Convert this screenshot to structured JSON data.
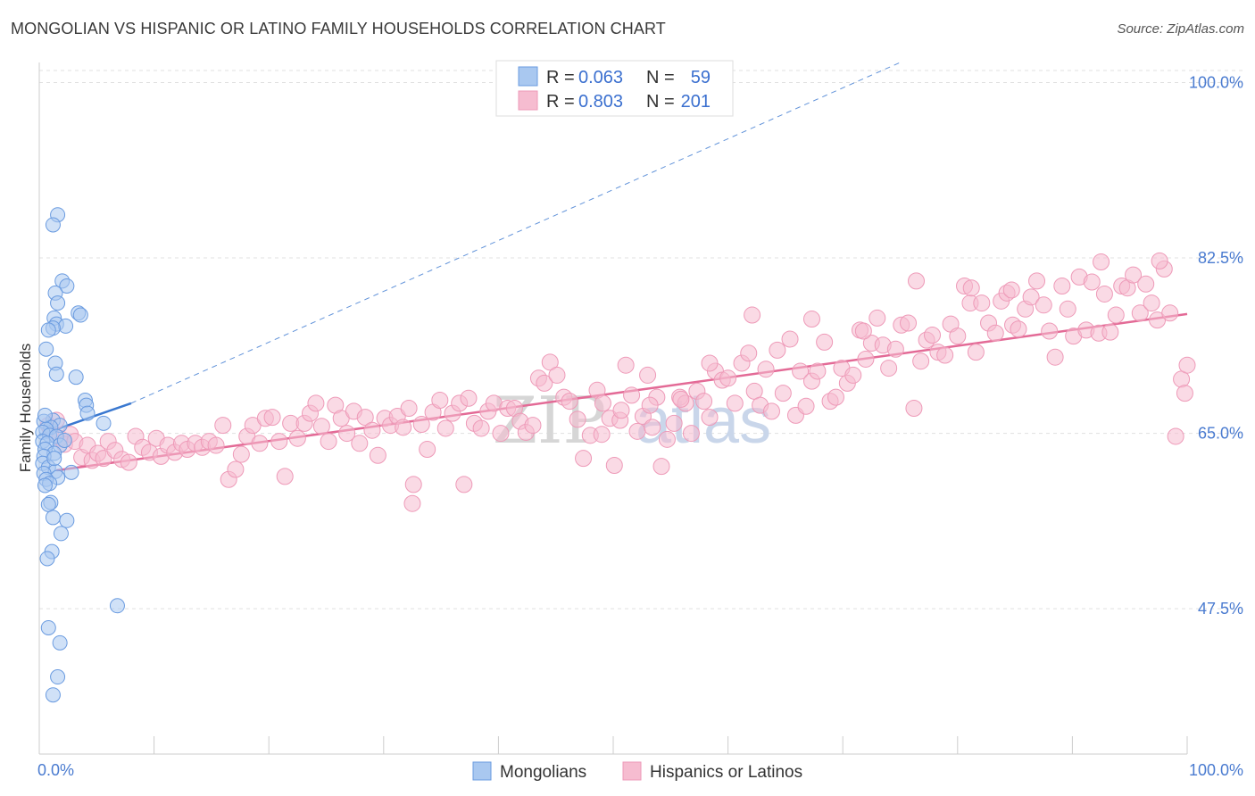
{
  "title": "MONGOLIAN VS HISPANIC OR LATINO FAMILY HOUSEHOLDS CORRELATION CHART",
  "source": "Source: ZipAtlas.com",
  "watermark": {
    "part1": "ZIP",
    "part2": "atlas"
  },
  "legend_box": {
    "rows": [
      {
        "r_label": "R = ",
        "r_value": "0.063",
        "n_label": "N = ",
        "n_value": "59"
      },
      {
        "r_label": "R = ",
        "r_value": "0.803",
        "n_label": "N = ",
        "n_value": "201"
      }
    ]
  },
  "colors": {
    "blue_fill": "#a9c8f0",
    "blue_stroke": "#6a9be0",
    "blue_line": "#3a78d0",
    "pink_fill": "#f6bcd0",
    "pink_stroke": "#ee9ab8",
    "pink_line": "#e36a96",
    "axis_label": "#4a7bd0",
    "grid": "#e0e0e0"
  },
  "chart_data": {
    "type": "scatter",
    "title": "MONGOLIAN VS HISPANIC OR LATINO FAMILY HOUSEHOLDS CORRELATION CHART",
    "xlabel": "",
    "ylabel": "Family Households",
    "xlim": [
      0,
      100
    ],
    "ylim": [
      33,
      102
    ],
    "x_tick_labels": [
      "0.0%",
      "100.0%"
    ],
    "y_ticks": [
      47.5,
      65.0,
      82.5,
      100.0
    ],
    "y_tick_labels": [
      "47.5%",
      "65.0%",
      "82.5%",
      "100.0%"
    ],
    "legend": [
      "Mongolians",
      "Hispanics or Latinos"
    ],
    "series": [
      {
        "name": "Mongolians",
        "R": 0.063,
        "N": 59,
        "trend": {
          "x1": 0.0,
          "y1": 64.8,
          "x2": 8.0,
          "y2": 68.0,
          "extended_to_x": 75.0,
          "extended_to_y": 102.0
        },
        "points": [
          [
            1.6,
            86.8
          ],
          [
            1.2,
            85.8
          ],
          [
            2.0,
            80.2
          ],
          [
            2.4,
            79.7
          ],
          [
            1.4,
            79.0
          ],
          [
            1.6,
            78.0
          ],
          [
            3.4,
            77.0
          ],
          [
            3.6,
            76.8
          ],
          [
            1.3,
            76.5
          ],
          [
            1.5,
            75.9
          ],
          [
            2.3,
            75.7
          ],
          [
            1.2,
            75.5
          ],
          [
            0.8,
            75.3
          ],
          [
            0.6,
            73.4
          ],
          [
            1.4,
            72.0
          ],
          [
            1.5,
            70.9
          ],
          [
            3.2,
            70.6
          ],
          [
            4.0,
            68.3
          ],
          [
            4.1,
            67.8
          ],
          [
            4.2,
            67.0
          ],
          [
            1.2,
            66.3
          ],
          [
            0.4,
            66.2
          ],
          [
            1.8,
            65.8
          ],
          [
            1.0,
            65.6
          ],
          [
            0.6,
            65.4
          ],
          [
            5.6,
            66.0
          ],
          [
            0.3,
            65.1
          ],
          [
            0.9,
            64.8
          ],
          [
            1.5,
            64.7
          ],
          [
            0.3,
            64.2
          ],
          [
            0.7,
            64.0
          ],
          [
            1.8,
            63.8
          ],
          [
            0.5,
            63.4
          ],
          [
            1.3,
            63.0
          ],
          [
            0.4,
            62.7
          ],
          [
            0.3,
            62.0
          ],
          [
            0.8,
            61.6
          ],
          [
            1.4,
            61.2
          ],
          [
            2.8,
            61.1
          ],
          [
            0.4,
            61.0
          ],
          [
            1.6,
            60.6
          ],
          [
            0.6,
            60.4
          ],
          [
            0.9,
            60.0
          ],
          [
            0.5,
            59.8
          ],
          [
            1.0,
            58.1
          ],
          [
            0.8,
            57.9
          ],
          [
            1.2,
            56.6
          ],
          [
            2.4,
            56.3
          ],
          [
            1.9,
            55.0
          ],
          [
            1.1,
            53.2
          ],
          [
            0.7,
            52.5
          ],
          [
            6.8,
            47.8
          ],
          [
            0.8,
            45.6
          ],
          [
            1.8,
            44.1
          ],
          [
            1.6,
            40.7
          ],
          [
            1.2,
            38.9
          ],
          [
            0.5,
            66.8
          ],
          [
            2.2,
            64.3
          ],
          [
            1.3,
            62.5
          ]
        ]
      },
      {
        "name": "Hispanics or Latinos",
        "R": 0.803,
        "N": 201,
        "trend": {
          "x1": 1.5,
          "y1": 61.3,
          "x2": 100.0,
          "y2": 76.9
        },
        "points": [
          [
            0.8,
            65.8
          ],
          [
            1.0,
            65.2
          ],
          [
            1.5,
            66.3
          ],
          [
            1.8,
            64.5
          ],
          [
            2.2,
            63.9
          ],
          [
            2.7,
            64.9
          ],
          [
            3.1,
            64.2
          ],
          [
            3.7,
            62.6
          ],
          [
            4.2,
            63.8
          ],
          [
            4.6,
            62.3
          ],
          [
            5.1,
            63.0
          ],
          [
            5.6,
            62.5
          ],
          [
            6.0,
            64.2
          ],
          [
            6.6,
            63.3
          ],
          [
            7.2,
            62.4
          ],
          [
            7.8,
            62.1
          ],
          [
            8.4,
            64.7
          ],
          [
            9.0,
            63.6
          ],
          [
            9.6,
            63.1
          ],
          [
            10.2,
            64.5
          ],
          [
            10.6,
            62.7
          ],
          [
            11.2,
            63.8
          ],
          [
            11.8,
            63.1
          ],
          [
            12.4,
            64.0
          ],
          [
            12.9,
            63.4
          ],
          [
            13.6,
            64.0
          ],
          [
            14.2,
            63.6
          ],
          [
            14.8,
            64.2
          ],
          [
            15.4,
            63.8
          ],
          [
            16.0,
            65.8
          ],
          [
            16.5,
            60.4
          ],
          [
            17.1,
            61.4
          ],
          [
            17.6,
            62.9
          ],
          [
            18.1,
            64.7
          ],
          [
            18.6,
            65.8
          ],
          [
            19.2,
            64.0
          ],
          [
            19.7,
            66.5
          ],
          [
            20.3,
            66.6
          ],
          [
            20.9,
            64.2
          ],
          [
            21.4,
            60.7
          ],
          [
            21.9,
            66.0
          ],
          [
            22.5,
            64.5
          ],
          [
            23.1,
            66.0
          ],
          [
            23.6,
            67.0
          ],
          [
            24.1,
            68.0
          ],
          [
            24.6,
            65.7
          ],
          [
            25.2,
            64.2
          ],
          [
            25.8,
            67.8
          ],
          [
            26.3,
            66.5
          ],
          [
            26.8,
            65.0
          ],
          [
            27.4,
            67.2
          ],
          [
            27.9,
            64.0
          ],
          [
            28.4,
            66.6
          ],
          [
            29.0,
            65.3
          ],
          [
            29.5,
            62.8
          ],
          [
            30.1,
            66.5
          ],
          [
            30.6,
            65.8
          ],
          [
            31.2,
            66.7
          ],
          [
            31.7,
            65.6
          ],
          [
            32.2,
            67.5
          ],
          [
            32.6,
            59.9
          ],
          [
            32.5,
            58.0
          ],
          [
            33.3,
            65.9
          ],
          [
            33.8,
            63.4
          ],
          [
            34.3,
            67.1
          ],
          [
            34.9,
            68.3
          ],
          [
            35.4,
            65.5
          ],
          [
            36.0,
            67.0
          ],
          [
            36.6,
            68.0
          ],
          [
            37.0,
            59.9
          ],
          [
            37.4,
            68.5
          ],
          [
            37.9,
            66.0
          ],
          [
            38.5,
            65.5
          ],
          [
            39.1,
            67.2
          ],
          [
            39.6,
            68.0
          ],
          [
            40.2,
            65.0
          ],
          [
            40.8,
            67.5
          ],
          [
            41.4,
            67.5
          ],
          [
            41.9,
            66.2
          ],
          [
            42.4,
            65.1
          ],
          [
            43.0,
            65.8
          ],
          [
            43.5,
            70.5
          ],
          [
            44.0,
            70.0
          ],
          [
            44.5,
            72.1
          ],
          [
            45.1,
            70.8
          ],
          [
            45.7,
            68.6
          ],
          [
            46.2,
            68.2
          ],
          [
            46.9,
            66.4
          ],
          [
            47.4,
            62.5
          ],
          [
            48.0,
            64.8
          ],
          [
            48.6,
            69.3
          ],
          [
            49.1,
            68.0
          ],
          [
            49.7,
            66.5
          ],
          [
            50.1,
            61.8
          ],
          [
            50.6,
            66.3
          ],
          [
            51.1,
            71.8
          ],
          [
            51.6,
            68.8
          ],
          [
            52.1,
            65.2
          ],
          [
            52.6,
            66.7
          ],
          [
            53.0,
            70.8
          ],
          [
            53.4,
            65.6
          ],
          [
            53.8,
            68.6
          ],
          [
            54.2,
            61.7
          ],
          [
            54.7,
            64.4
          ],
          [
            55.3,
            66.0
          ],
          [
            55.8,
            68.6
          ],
          [
            56.3,
            68.0
          ],
          [
            56.8,
            65.0
          ],
          [
            57.3,
            69.2
          ],
          [
            57.9,
            68.2
          ],
          [
            58.4,
            66.6
          ],
          [
            58.9,
            71.2
          ],
          [
            59.5,
            70.3
          ],
          [
            60.0,
            70.5
          ],
          [
            60.6,
            68.0
          ],
          [
            61.2,
            72.0
          ],
          [
            61.8,
            73.0
          ],
          [
            62.3,
            69.2
          ],
          [
            62.8,
            67.8
          ],
          [
            63.3,
            71.4
          ],
          [
            63.8,
            67.2
          ],
          [
            64.3,
            73.3
          ],
          [
            64.8,
            69.0
          ],
          [
            65.4,
            74.4
          ],
          [
            65.9,
            66.8
          ],
          [
            66.3,
            71.2
          ],
          [
            66.8,
            67.7
          ],
          [
            67.3,
            70.2
          ],
          [
            67.8,
            71.2
          ],
          [
            68.4,
            74.1
          ],
          [
            68.9,
            68.2
          ],
          [
            69.4,
            68.6
          ],
          [
            69.9,
            71.5
          ],
          [
            70.4,
            70.0
          ],
          [
            70.9,
            70.8
          ],
          [
            71.5,
            75.3
          ],
          [
            72.0,
            72.4
          ],
          [
            72.5,
            74.0
          ],
          [
            73.0,
            76.5
          ],
          [
            73.5,
            73.8
          ],
          [
            74.0,
            71.5
          ],
          [
            74.6,
            73.4
          ],
          [
            75.1,
            75.8
          ],
          [
            75.7,
            76.0
          ],
          [
            76.2,
            67.5
          ],
          [
            76.8,
            72.2
          ],
          [
            77.3,
            74.3
          ],
          [
            77.8,
            74.8
          ],
          [
            78.3,
            73.1
          ],
          [
            78.9,
            72.8
          ],
          [
            79.4,
            75.9
          ],
          [
            80.0,
            74.7
          ],
          [
            80.6,
            79.7
          ],
          [
            81.1,
            78.0
          ],
          [
            81.6,
            73.1
          ],
          [
            82.1,
            78.0
          ],
          [
            82.7,
            76.0
          ],
          [
            83.3,
            75.0
          ],
          [
            83.8,
            78.2
          ],
          [
            84.3,
            79.0
          ],
          [
            84.8,
            75.8
          ],
          [
            85.3,
            75.4
          ],
          [
            85.9,
            77.4
          ],
          [
            86.4,
            78.6
          ],
          [
            86.9,
            80.2
          ],
          [
            87.5,
            77.8
          ],
          [
            88.0,
            75.2
          ],
          [
            88.5,
            72.6
          ],
          [
            89.1,
            79.7
          ],
          [
            89.6,
            77.4
          ],
          [
            90.1,
            74.7
          ],
          [
            90.6,
            80.6
          ],
          [
            91.2,
            75.3
          ],
          [
            91.7,
            80.1
          ],
          [
            92.3,
            75.0
          ],
          [
            92.8,
            78.9
          ],
          [
            93.3,
            75.1
          ],
          [
            93.8,
            76.8
          ],
          [
            94.3,
            79.7
          ],
          [
            94.8,
            79.5
          ],
          [
            95.3,
            80.8
          ],
          [
            95.9,
            77.0
          ],
          [
            96.4,
            79.9
          ],
          [
            96.9,
            78.0
          ],
          [
            97.4,
            76.3
          ],
          [
            98.0,
            81.4
          ],
          [
            98.5,
            77.0
          ],
          [
            99.0,
            64.7
          ],
          [
            99.5,
            70.4
          ],
          [
            99.8,
            69.0
          ],
          [
            100.0,
            71.8
          ],
          [
            97.6,
            82.2
          ],
          [
            92.5,
            82.1
          ],
          [
            84.7,
            79.3
          ],
          [
            81.2,
            79.5
          ],
          [
            76.4,
            80.2
          ],
          [
            71.8,
            75.2
          ],
          [
            67.3,
            76.4
          ],
          [
            62.1,
            76.8
          ],
          [
            58.4,
            72.0
          ],
          [
            55.9,
            68.4
          ],
          [
            53.2,
            67.8
          ],
          [
            50.7,
            67.3
          ],
          [
            49.0,
            64.9
          ]
        ]
      }
    ]
  }
}
